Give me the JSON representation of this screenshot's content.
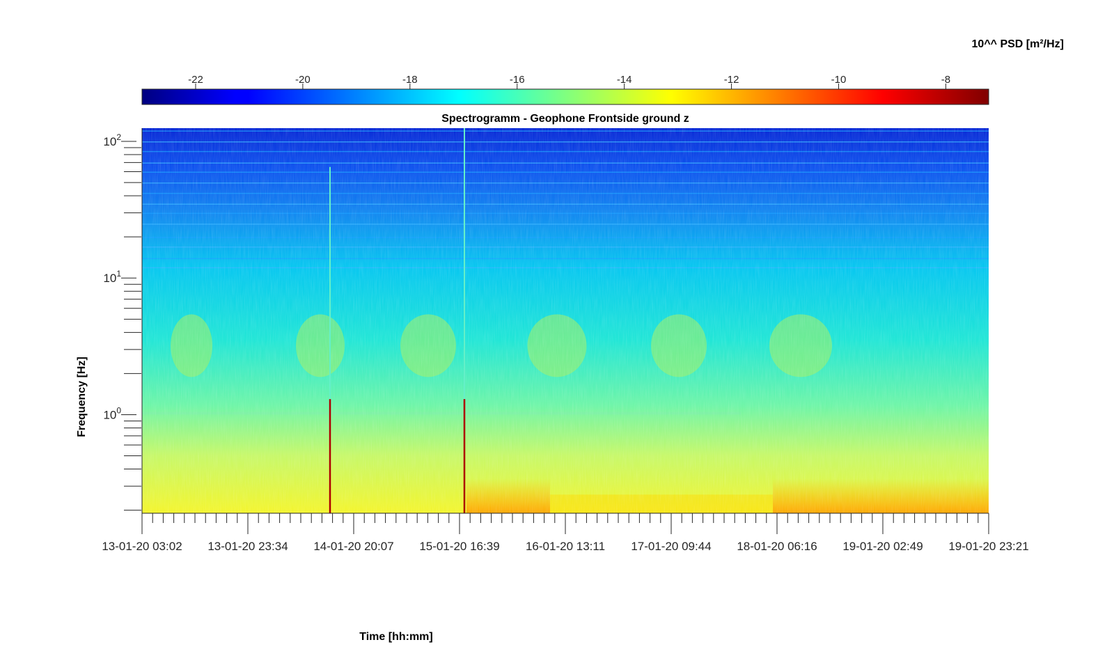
{
  "chart_data": {
    "type": "heatmap",
    "title": "Spectrogramm - Geophone Frontside ground z",
    "xlabel": "Time [hh:mm]",
    "ylabel": "Frequency [Hz]",
    "colorbar": {
      "label": "10^^ PSD [m²/Hz]",
      "range": [
        -23,
        -7.2
      ],
      "ticks": [
        "-22",
        "-20",
        "-18",
        "-16",
        "-14",
        "-12",
        "-10",
        "-8"
      ],
      "tick_values": [
        -22,
        -20,
        -18,
        -16,
        -14,
        -12,
        -10,
        -8
      ],
      "colormap": "jet",
      "location": "top"
    },
    "x_ticks": [
      "13-01-20 03:02",
      "13-01-20 23:34",
      "14-01-20 20:07",
      "15-01-20 16:39",
      "16-01-20 13:11",
      "17-01-20 09:44",
      "18-01-20 06:16",
      "19-01-20 02:49",
      "19-01-20 23:21"
    ],
    "y_scale": "log",
    "y_ticks": [
      {
        "base": "10",
        "exp": "0",
        "value": 1
      },
      {
        "base": "10",
        "exp": "1",
        "value": 10
      },
      {
        "base": "10",
        "exp": "2",
        "value": 100
      }
    ],
    "ylim": [
      0.19,
      125
    ],
    "grid": false,
    "events": [
      {
        "time": "14-01-20 15:30",
        "description": "broadband vertical transient"
      },
      {
        "time": "15-01-20 17:20",
        "description": "broadband vertical transient"
      }
    ],
    "frequency_profile_log10_psd": [
      {
        "freq_hz": 0.2,
        "psd": -10.6
      },
      {
        "freq_hz": 0.3,
        "psd": -11.4
      },
      {
        "freq_hz": 0.5,
        "psd": -12.5
      },
      {
        "freq_hz": 1,
        "psd": -13.6
      },
      {
        "freq_hz": 3.5,
        "psd": -14.5
      },
      {
        "freq_hz": 10,
        "psd": -16.6
      },
      {
        "freq_hz": 30,
        "psd": -18.2
      },
      {
        "freq_hz": 100,
        "psd": -20.8
      }
    ]
  }
}
